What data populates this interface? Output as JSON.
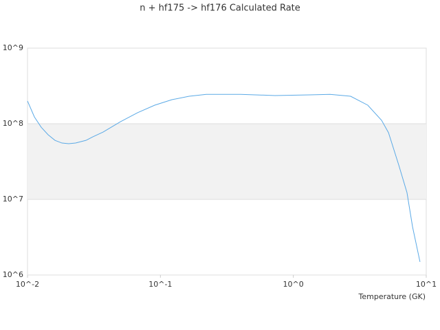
{
  "chart_data": {
    "type": "line",
    "title": "n + hf175 -> hf176 Calculated Rate",
    "x_label": "Temperature (GK)",
    "xscale": "log",
    "yscale": "log",
    "alternate_bands": true,
    "grid": true,
    "xlim": [
      0.01,
      10
    ],
    "ylim": [
      1000000,
      1000000000
    ],
    "xticks": [
      {
        "value": 0.01,
        "label": "10^-2"
      },
      {
        "value": 0.1,
        "label": "10^-1"
      },
      {
        "value": 1,
        "label": "10^0"
      },
      {
        "value": 10,
        "label": "10^1"
      }
    ],
    "yticks": [
      {
        "value": 1000000,
        "label": "10^6"
      },
      {
        "value": 10000000,
        "label": "10^7"
      },
      {
        "value": 100000000,
        "label": "10^8"
      },
      {
        "value": 1000000000,
        "label": "10^9"
      }
    ],
    "x": [
      0.01,
      0.01127,
      0.01268,
      0.01429,
      0.01611,
      0.01816,
      0.02042,
      0.02301,
      0.02754,
      0.03097,
      0.03707,
      0.04989,
      0.0673,
      0.09057,
      0.1219,
      0.1644,
      0.2213,
      0.4009,
      0.7278,
      1.321,
      1.888,
      2.698,
      3.631,
      4.613,
      5.2,
      6.209,
      7.161,
      7.889,
      8.974
    ],
    "series": [
      {
        "color": "#5aa9e6",
        "values": [
          200000000,
          123000000,
          90000000,
          71600000,
          60300000,
          55600000,
          54500000,
          55600000,
          60300000,
          67100000,
          77600000,
          106000000,
          140000000,
          176000000,
          208000000,
          231000000,
          245000000,
          245000000,
          236000000,
          241000000,
          245000000,
          231000000,
          176000000,
          111000000,
          76200000,
          28500000,
          12300000,
          4330000,
          1490000
        ]
      }
    ]
  }
}
